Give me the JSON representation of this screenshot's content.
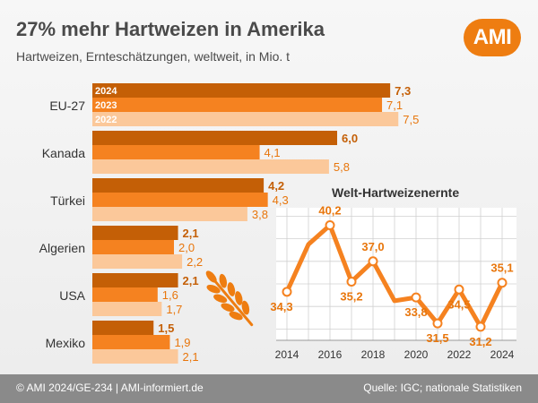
{
  "header": {
    "title": "27% mehr Hartweizen in Amerika",
    "subtitle": "Hartweizen, Ernteschätzungen, weltweit, in Mio. t",
    "logo": "AMI"
  },
  "footer": {
    "left": "© AMI 2024/GE-234 | AMI-informiert.de",
    "right": "Quelle: IGC; nationale Statistiken"
  },
  "colors": {
    "y2024": "#c45f06",
    "y2023": "#f58220",
    "y2022": "#fbc89a",
    "line": "#f58220",
    "label": "#e8760c"
  },
  "chart_data": [
    {
      "type": "bar",
      "orientation": "horizontal",
      "categories": [
        "EU-27",
        "Kanada",
        "Türkei",
        "Algerien",
        "USA",
        "Mexiko"
      ],
      "series": [
        {
          "name": "2024",
          "values": [
            7.3,
            6.0,
            4.2,
            2.1,
            2.1,
            1.5
          ],
          "labels": [
            "7,3",
            "6,0",
            "4,2",
            "2,1",
            "2,1",
            "1,5"
          ]
        },
        {
          "name": "2023",
          "values": [
            7.1,
            4.1,
            4.3,
            2.0,
            1.6,
            1.9
          ],
          "labels": [
            "7,1",
            "4,1",
            "4,3",
            "2,0",
            "1,6",
            "1,9"
          ]
        },
        {
          "name": "2022",
          "values": [
            7.5,
            5.8,
            3.8,
            2.2,
            1.7,
            2.1
          ],
          "labels": [
            "7,5",
            "5,8",
            "3,8",
            "2,2",
            "1,7",
            "2,1"
          ]
        }
      ],
      "xlim": [
        0,
        7.5
      ],
      "grid": false
    },
    {
      "type": "line",
      "title": "Welt-Hartweizenernte",
      "x": [
        2014,
        2015,
        2016,
        2017,
        2018,
        2019,
        2020,
        2021,
        2022,
        2023,
        2024
      ],
      "y": [
        34.3,
        38.5,
        40.2,
        35.2,
        37.0,
        33.5,
        33.8,
        31.5,
        34.5,
        31.2,
        35.1
      ],
      "point_labels": [
        {
          "x": 2014,
          "text": "34,3"
        },
        {
          "x": 2016,
          "text": "40,2"
        },
        {
          "x": 2017,
          "text": "35,2"
        },
        {
          "x": 2018,
          "text": "37,0"
        },
        {
          "x": 2020,
          "text": "33,8"
        },
        {
          "x": 2021,
          "text": "31,5"
        },
        {
          "x": 2022,
          "text": "34,5"
        },
        {
          "x": 2023,
          "text": "31,2"
        },
        {
          "x": 2024,
          "text": "35,1"
        }
      ],
      "x_ticks": [
        "2014",
        "2016",
        "2018",
        "2020",
        "2022",
        "2024"
      ],
      "grid": true
    }
  ]
}
